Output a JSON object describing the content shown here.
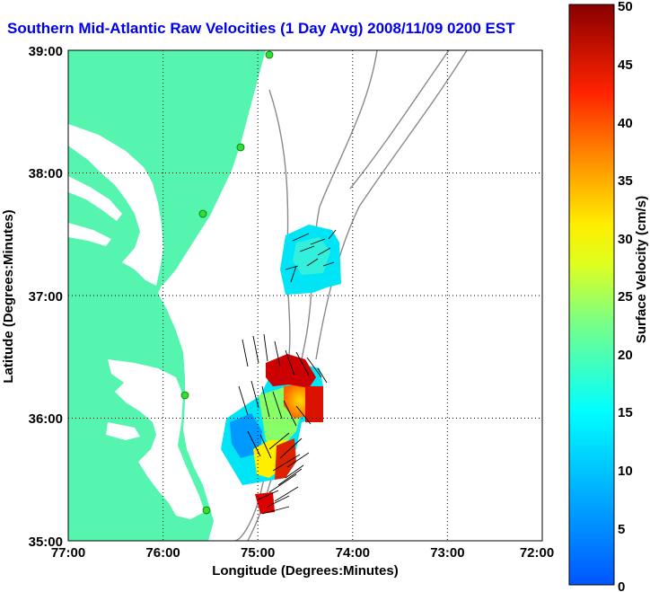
{
  "title": "Southern Mid-Atlantic Raw Velocities (1 Day Avg) 2008/11/09 0200 EST",
  "map": {
    "xlabel": "Longitude (Degrees:Minutes)",
    "ylabel": "Latitude (Degrees:Minutes)",
    "x_ticks": [
      "77:00",
      "76:00",
      "75:00",
      "74:00",
      "73:00",
      "72:00"
    ],
    "y_ticks": [
      "39:00",
      "38:00",
      "37:00",
      "36:00",
      "35:00"
    ],
    "lon_range": [
      -77,
      -72
    ],
    "lat_range": [
      35,
      39
    ],
    "grid": "dotted"
  },
  "colorbar": {
    "label": "Surface Velocity (cm/s)",
    "ticks": [
      "50",
      "45",
      "40",
      "35",
      "30",
      "25",
      "20",
      "15",
      "10",
      "5",
      "0"
    ],
    "range": [
      0,
      50
    ],
    "colormap": "jet"
  },
  "colors": {
    "land": "#55f5b0",
    "title": "#0000ee",
    "bathymetry": "#8a8a8a",
    "station": "#33dd33"
  }
}
